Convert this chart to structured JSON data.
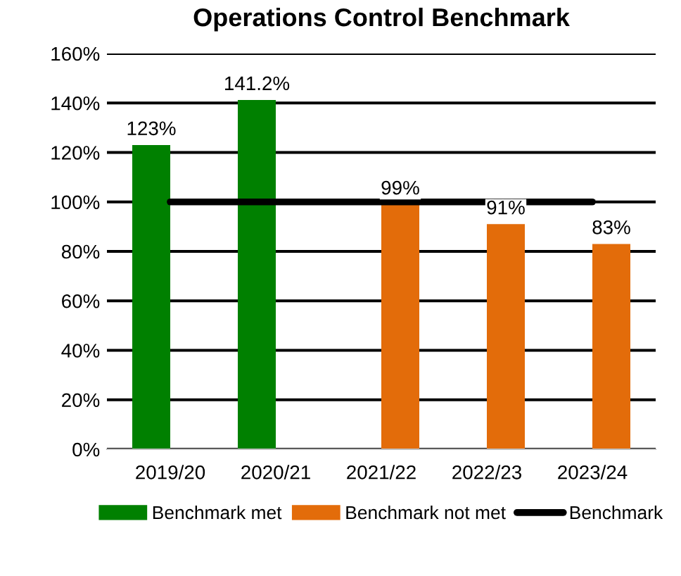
{
  "chart_data": {
    "type": "bar",
    "title": "Operations Control Benchmark",
    "categories": [
      "2019/20",
      "2020/21",
      "2021/22",
      "2022/23",
      "2023/24"
    ],
    "series": [
      {
        "name": "Benchmark met",
        "color": "#008000",
        "values": [
          123,
          141.2,
          null,
          null,
          null
        ],
        "value_labels": [
          "123%",
          "141.2%",
          null,
          null,
          null
        ]
      },
      {
        "name": "Benchmark not met",
        "color": "#e36c0a",
        "values": [
          null,
          null,
          99,
          91,
          83
        ],
        "value_labels": [
          null,
          null,
          "99%",
          "91%",
          "83%"
        ]
      },
      {
        "name": "Benchmark",
        "type": "line",
        "color": "#000000",
        "values": [
          100,
          100,
          100,
          100,
          100
        ],
        "marker": "none",
        "line_style": "solid"
      }
    ],
    "ylim": [
      0,
      160
    ],
    "yticks": [
      {
        "value": 0,
        "label": "0%"
      },
      {
        "value": 20,
        "label": "20%"
      },
      {
        "value": 40,
        "label": "40%"
      },
      {
        "value": 60,
        "label": "60%"
      },
      {
        "value": 80,
        "label": "80%"
      },
      {
        "value": 100,
        "label": "100%"
      },
      {
        "value": 120,
        "label": "120%"
      },
      {
        "value": 140,
        "label": "140%"
      },
      {
        "value": 160,
        "label": "160%"
      }
    ],
    "grid": "y",
    "legend": "bottom"
  }
}
